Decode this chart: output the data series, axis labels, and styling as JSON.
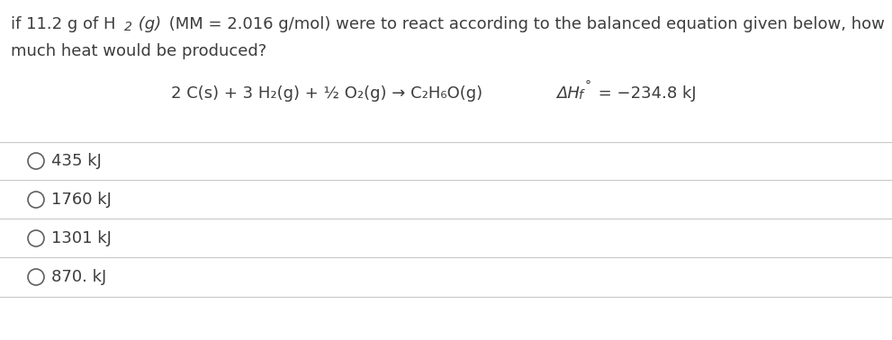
{
  "background_color": "#ffffff",
  "text_color": "#3d3d3d",
  "choices": [
    "435 kJ",
    "1760 kJ",
    "1301 kJ",
    "870. kJ"
  ],
  "divider_color": "#c8c8c8",
  "circle_color": "#606060",
  "font_size": 13.0,
  "fig_width": 9.91,
  "fig_height": 3.78,
  "dpi": 100
}
